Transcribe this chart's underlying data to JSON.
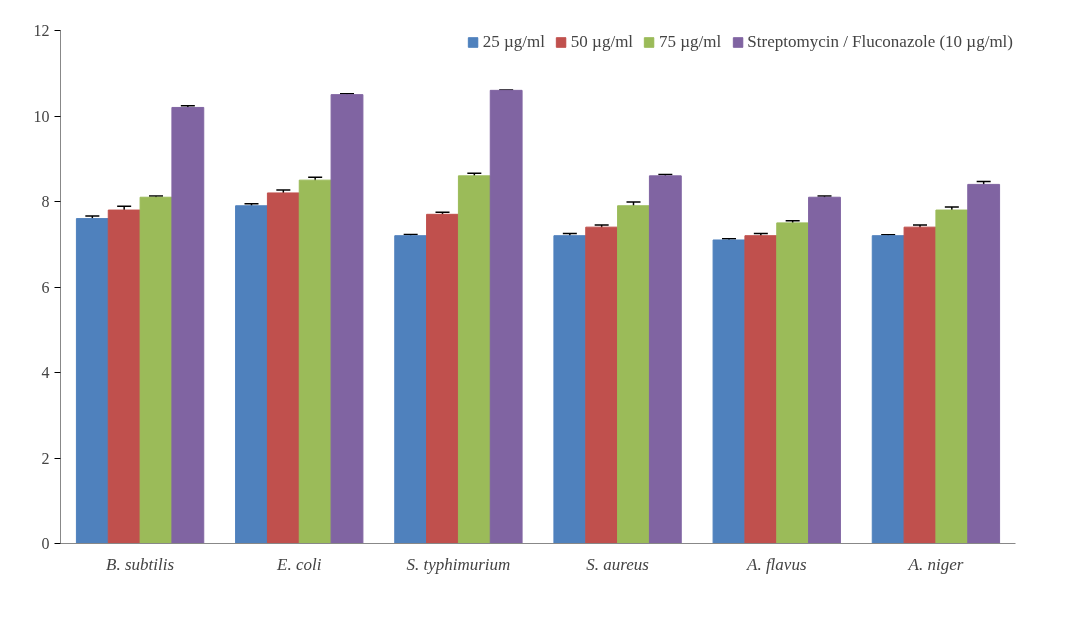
{
  "chart_data": {
    "type": "bar",
    "categories": [
      "B. subtilis",
      "E. coli",
      "S. typhimurium",
      "S. aureus",
      "A. flavus",
      "A. niger"
    ],
    "series": [
      {
        "name": "25 µg/ml",
        "color": "#4f81bd",
        "values": [
          7.6,
          7.9,
          7.2,
          7.2,
          7.1,
          7.2
        ],
        "errors": [
          0.06,
          0.05,
          0.03,
          0.05,
          0.03,
          0.02
        ]
      },
      {
        "name": "50 µg/ml",
        "color": "#c0504d",
        "values": [
          7.8,
          8.2,
          7.7,
          7.4,
          7.2,
          7.4
        ],
        "errors": [
          0.09,
          0.07,
          0.05,
          0.05,
          0.05,
          0.05
        ]
      },
      {
        "name": "75 µg/ml",
        "color": "#9bbb59",
        "values": [
          8.1,
          8.5,
          8.6,
          7.9,
          7.5,
          7.8
        ],
        "errors": [
          0.03,
          0.07,
          0.06,
          0.09,
          0.05,
          0.07
        ]
      },
      {
        "name": "Streptomycin / Fluconazole (10 µg/ml)",
        "color": "#8064a2",
        "values": [
          10.2,
          10.5,
          10.6,
          8.6,
          8.1,
          8.4
        ],
        "errors": [
          0.04,
          0.02,
          0.01,
          0.03,
          0.03,
          0.07
        ]
      }
    ],
    "ylim": [
      0,
      12
    ],
    "yticks": [
      0,
      2,
      4,
      6,
      8,
      10,
      12
    ],
    "grid": false,
    "legend": "top right"
  }
}
